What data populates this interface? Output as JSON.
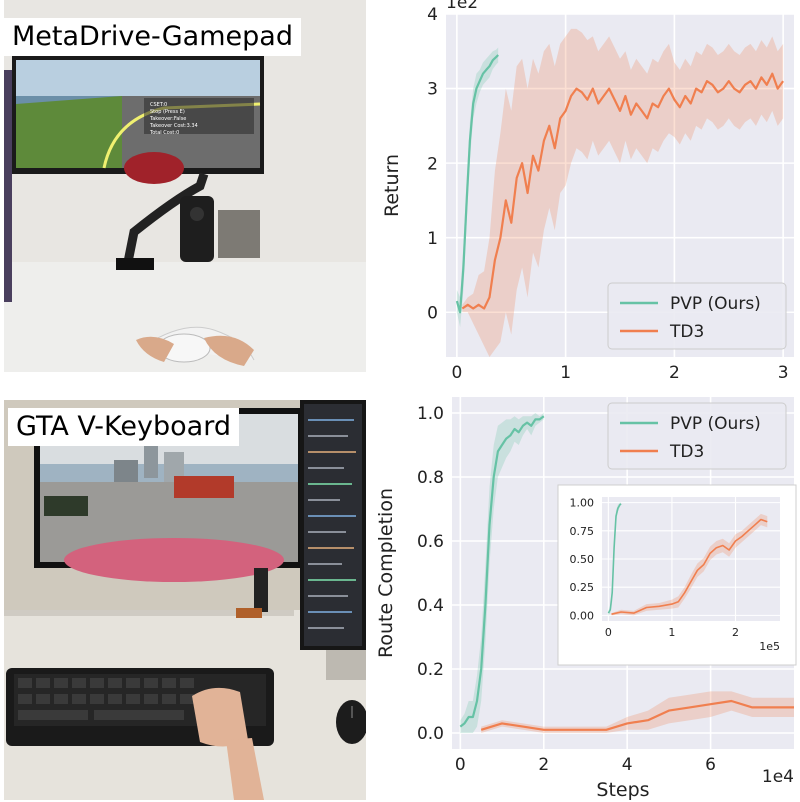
{
  "photos": [
    {
      "label": "MetaDrive-Gamepad",
      "screen_text": [
        "CSET:0",
        "Stop (Press E)",
        "Takeover:False",
        "Takeover Cost:3.34",
        "Total Cost:0"
      ]
    },
    {
      "label": "GTA V-Keyboard"
    }
  ],
  "colors": {
    "pvp": "#66c2a5",
    "td3": "#f07f4f",
    "plot_bg": "#eaeaf2",
    "grid": "#ffffff"
  },
  "chart_data": [
    {
      "type": "line",
      "title": "",
      "xlabel": "",
      "ylabel": "Return",
      "x_exponent": "",
      "y_exponent": "1e2",
      "xlim": [
        -0.1,
        3.1
      ],
      "ylim": [
        -0.6,
        4.0
      ],
      "xticks": [
        0,
        1,
        2,
        3
      ],
      "xtick_labels": [
        "0",
        "1",
        "2",
        "3"
      ],
      "yticks": [
        0,
        1,
        2,
        3,
        4
      ],
      "ytick_labels": [
        "0",
        "1",
        "2",
        "3",
        "4"
      ],
      "grid": true,
      "legend": {
        "position": "bottom-right",
        "entries": [
          "PVP (Ours)",
          "TD3"
        ]
      },
      "series": [
        {
          "name": "PVP (Ours)",
          "color_key": "pvp",
          "x": [
            0,
            0.03,
            0.06,
            0.09,
            0.12,
            0.15,
            0.18,
            0.21,
            0.24,
            0.27,
            0.3,
            0.33,
            0.36,
            0.38
          ],
          "y": [
            0.15,
            0.0,
            0.6,
            1.5,
            2.3,
            2.8,
            3.0,
            3.1,
            3.2,
            3.25,
            3.3,
            3.38,
            3.42,
            3.45
          ],
          "band": [
            0.15,
            0.2,
            0.3,
            0.3,
            0.25,
            0.2,
            0.2,
            0.15,
            0.15,
            0.15,
            0.15,
            0.12,
            0.1,
            0.1
          ]
        },
        {
          "name": "TD3",
          "color_key": "td3",
          "x": [
            0.05,
            0.1,
            0.15,
            0.2,
            0.25,
            0.3,
            0.35,
            0.4,
            0.45,
            0.5,
            0.55,
            0.6,
            0.65,
            0.7,
            0.75,
            0.8,
            0.85,
            0.9,
            0.95,
            1.0,
            1.05,
            1.1,
            1.15,
            1.2,
            1.25,
            1.3,
            1.35,
            1.4,
            1.45,
            1.5,
            1.55,
            1.6,
            1.65,
            1.7,
            1.75,
            1.8,
            1.85,
            1.9,
            1.95,
            2.0,
            2.05,
            2.1,
            2.15,
            2.2,
            2.25,
            2.3,
            2.35,
            2.4,
            2.45,
            2.5,
            2.55,
            2.6,
            2.65,
            2.7,
            2.75,
            2.8,
            2.85,
            2.9,
            2.95,
            3.0
          ],
          "y": [
            0.05,
            0.1,
            0.05,
            0.1,
            0.05,
            0.2,
            0.7,
            1.0,
            1.5,
            1.2,
            1.8,
            2.0,
            1.6,
            2.1,
            1.9,
            2.3,
            2.5,
            2.2,
            2.6,
            2.7,
            2.9,
            3.0,
            2.95,
            2.85,
            3.0,
            2.8,
            2.9,
            3.0,
            2.85,
            2.7,
            2.9,
            2.65,
            2.8,
            2.7,
            2.6,
            2.8,
            2.75,
            2.9,
            3.0,
            2.85,
            2.75,
            2.9,
            2.8,
            3.0,
            2.95,
            3.1,
            3.05,
            2.95,
            3.0,
            3.1,
            3.0,
            2.95,
            3.05,
            3.1,
            3.0,
            3.15,
            3.05,
            3.2,
            3.0,
            3.1
          ],
          "band": [
            0.05,
            0.1,
            0.2,
            0.4,
            0.5,
            0.8,
            1.2,
            1.4,
            1.5,
            1.5,
            1.5,
            1.4,
            1.4,
            1.3,
            1.3,
            1.2,
            1.1,
            1.1,
            1.0,
            1.0,
            0.9,
            0.8,
            0.8,
            0.8,
            0.7,
            0.7,
            0.7,
            0.7,
            0.7,
            0.7,
            0.6,
            0.6,
            0.6,
            0.6,
            0.6,
            0.6,
            0.6,
            0.6,
            0.6,
            0.5,
            0.5,
            0.5,
            0.5,
            0.5,
            0.5,
            0.5,
            0.5,
            0.5,
            0.5,
            0.5,
            0.5,
            0.5,
            0.5,
            0.5,
            0.5,
            0.5,
            0.5,
            0.5,
            0.5,
            0.5
          ]
        }
      ]
    },
    {
      "type": "line",
      "title": "",
      "xlabel": "Steps",
      "ylabel": "Route Completion",
      "x_exponent": "1e4",
      "y_exponent": "",
      "xlim": [
        -0.2,
        8.0
      ],
      "ylim": [
        -0.05,
        1.05
      ],
      "xticks": [
        0,
        2,
        4,
        6
      ],
      "xtick_labels": [
        "0",
        "2",
        "4",
        "6"
      ],
      "yticks": [
        0.0,
        0.2,
        0.4,
        0.6,
        0.8,
        1.0
      ],
      "ytick_labels": [
        "0.0",
        "0.2",
        "0.4",
        "0.6",
        "0.8",
        "1.0"
      ],
      "grid": true,
      "legend": {
        "position": "top-right",
        "entries": [
          "PVP (Ours)",
          "TD3"
        ]
      },
      "series": [
        {
          "name": "PVP (Ours)",
          "color_key": "pvp",
          "x": [
            0.0,
            0.1,
            0.2,
            0.3,
            0.4,
            0.5,
            0.6,
            0.7,
            0.8,
            0.9,
            1.0,
            1.1,
            1.2,
            1.3,
            1.4,
            1.5,
            1.6,
            1.7,
            1.8,
            1.9,
            2.0
          ],
          "y": [
            0.02,
            0.03,
            0.05,
            0.05,
            0.1,
            0.2,
            0.4,
            0.65,
            0.8,
            0.88,
            0.9,
            0.92,
            0.93,
            0.95,
            0.94,
            0.96,
            0.97,
            0.96,
            0.98,
            0.98,
            0.99
          ],
          "band": [
            0.02,
            0.03,
            0.05,
            0.05,
            0.08,
            0.1,
            0.12,
            0.12,
            0.1,
            0.08,
            0.07,
            0.06,
            0.05,
            0.04,
            0.04,
            0.03,
            0.02,
            0.03,
            0.02,
            0.01,
            0.01
          ]
        },
        {
          "name": "TD3",
          "color_key": "td3",
          "x": [
            0.5,
            1.0,
            1.5,
            2.0,
            2.5,
            3.0,
            3.5,
            4.0,
            4.5,
            5.0,
            5.5,
            6.0,
            6.5,
            7.0,
            7.5,
            8.0
          ],
          "y": [
            0.01,
            0.03,
            0.02,
            0.01,
            0.01,
            0.01,
            0.01,
            0.03,
            0.04,
            0.07,
            0.08,
            0.09,
            0.1,
            0.08,
            0.08,
            0.08
          ],
          "band": [
            0.01,
            0.01,
            0.01,
            0.01,
            0.01,
            0.01,
            0.01,
            0.02,
            0.03,
            0.04,
            0.04,
            0.04,
            0.03,
            0.03,
            0.03,
            0.03
          ]
        }
      ]
    },
    {
      "type": "line",
      "title": "",
      "xlabel": "",
      "ylabel": "",
      "x_exponent": "1e5",
      "y_exponent": "",
      "xlim": [
        -0.1,
        2.7
      ],
      "ylim": [
        -0.05,
        1.05
      ],
      "xticks": [
        0,
        1,
        2
      ],
      "xtick_labels": [
        "0",
        "1",
        "2"
      ],
      "yticks": [
        0.0,
        0.25,
        0.5,
        0.75,
        1.0
      ],
      "ytick_labels": [
        "0.00",
        "0.25",
        "0.50",
        "0.75",
        "1.00"
      ],
      "grid": true,
      "legend": null,
      "series": [
        {
          "name": "PVP (Ours)",
          "color_key": "pvp",
          "x": [
            0.0,
            0.03,
            0.06,
            0.09,
            0.12,
            0.15,
            0.18,
            0.2
          ],
          "y": [
            0.02,
            0.05,
            0.2,
            0.6,
            0.88,
            0.95,
            0.98,
            0.99
          ],
          "band": [
            0.02,
            0.03,
            0.08,
            0.08,
            0.05,
            0.03,
            0.02,
            0.01
          ]
        },
        {
          "name": "TD3",
          "color_key": "td3",
          "x": [
            0.05,
            0.2,
            0.4,
            0.6,
            0.8,
            1.0,
            1.1,
            1.2,
            1.3,
            1.4,
            1.5,
            1.6,
            1.7,
            1.8,
            1.9,
            2.0,
            2.1,
            2.2,
            2.3,
            2.4,
            2.5
          ],
          "y": [
            0.01,
            0.03,
            0.02,
            0.07,
            0.08,
            0.1,
            0.12,
            0.2,
            0.3,
            0.4,
            0.45,
            0.55,
            0.6,
            0.62,
            0.58,
            0.66,
            0.7,
            0.75,
            0.8,
            0.85,
            0.83
          ],
          "band": [
            0.01,
            0.02,
            0.02,
            0.03,
            0.03,
            0.04,
            0.05,
            0.05,
            0.06,
            0.06,
            0.06,
            0.06,
            0.06,
            0.06,
            0.06,
            0.06,
            0.05,
            0.05,
            0.05,
            0.05,
            0.05
          ]
        }
      ]
    }
  ]
}
